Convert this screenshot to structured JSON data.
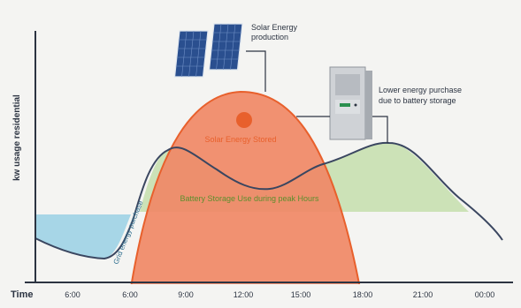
{
  "axes": {
    "y_label": "kw usage residential",
    "x_label": "Time",
    "ticks": [
      "6:00",
      "6:00",
      "9:00",
      "12:00",
      "15:00",
      "18:00",
      "21:00",
      "00:00"
    ]
  },
  "labels": {
    "solar_production": [
      "Solar Energy",
      "production"
    ],
    "lower_purchase": [
      "Lower energy purchase",
      "due to battery storage"
    ],
    "solar_surplus": "Solar Energy Stored",
    "battery_use": "Battery Storage Use during peak Hours",
    "grid_purchase": "Grid energy purchase"
  },
  "colors": {
    "background": "#f4f4f2",
    "axis": "#2c3442",
    "solar_fill": "#f08866",
    "solar_line": "#e8602c",
    "battery_fill": "#c9e0b3",
    "battery_text": "#5b8f2d",
    "grid_fill": "#9ed3e6",
    "demand_line": "#3a4660"
  },
  "icons": [
    "solar-panel-icon",
    "solar-panel-icon",
    "sun-icon",
    "battery-cabinet-icon"
  ]
}
